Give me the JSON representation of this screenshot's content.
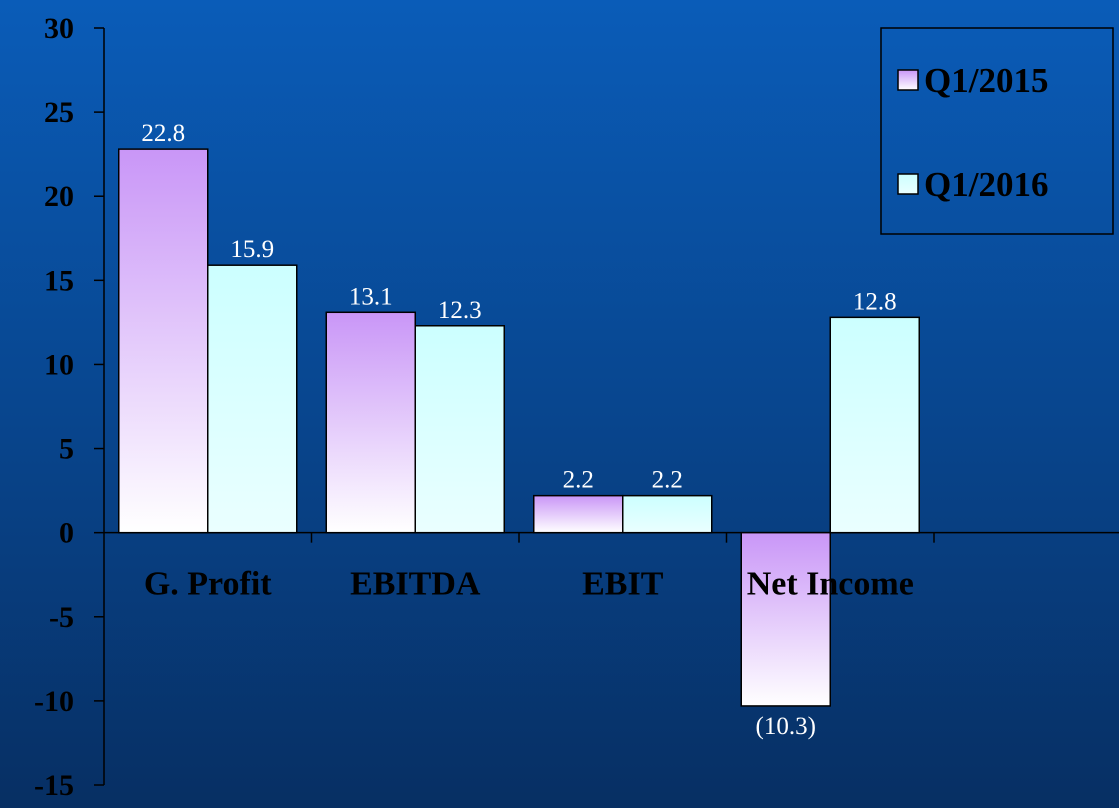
{
  "chart_data": {
    "type": "bar",
    "categories": [
      "G. Profit",
      "EBITDA",
      "EBIT",
      "Net Income"
    ],
    "series": [
      {
        "name": "Q1/2015",
        "values": [
          22.8,
          13.1,
          2.2,
          -10.3
        ],
        "labels": [
          "22.8",
          "13.1",
          "2.2",
          "(10.3)"
        ]
      },
      {
        "name": "Q1/2016",
        "values": [
          15.9,
          12.3,
          2.2,
          12.8
        ],
        "labels": [
          "15.9",
          "12.3",
          "2.2",
          "12.8"
        ]
      }
    ],
    "ylim": [
      -15,
      30
    ],
    "yticks": [
      30,
      25,
      20,
      15,
      10,
      5,
      0,
      -5,
      -10,
      -15
    ],
    "legend": "top-right",
    "grid": false,
    "colors": {
      "Q1/2015": [
        "#c996f7",
        "#ffffff"
      ],
      "Q1/2016": [
        "#ccffff",
        "#eaffff"
      ],
      "background_top": "#0a5cb8",
      "background_bottom": "#072f63"
    }
  }
}
